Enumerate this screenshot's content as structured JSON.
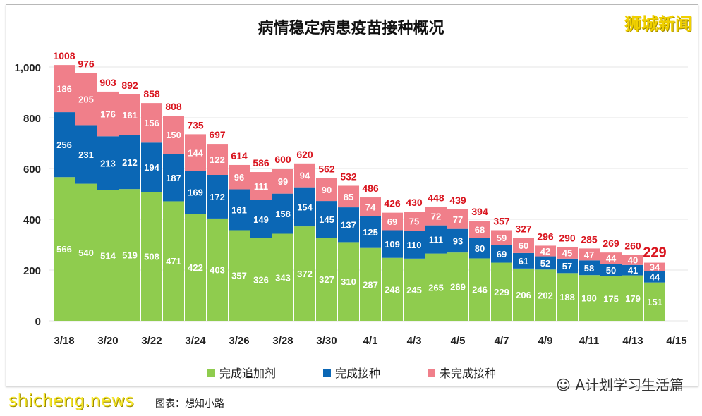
{
  "chart_data": {
    "type": "bar",
    "stacked": true,
    "title": "病情稳定病患疫苗接种概况",
    "categories": [
      "3/18",
      "3/19",
      "3/20",
      "3/21",
      "3/22",
      "3/23",
      "3/24",
      "3/25",
      "3/26",
      "3/27",
      "3/28",
      "3/29",
      "3/30",
      "3/31",
      "4/1",
      "4/2",
      "4/3",
      "4/4",
      "4/5",
      "4/6",
      "4/7",
      "4/8",
      "4/9",
      "4/10",
      "4/11",
      "4/12",
      "4/13",
      "4/14"
    ],
    "xtick_labels": [
      "3/18",
      "3/20",
      "3/22",
      "3/24",
      "3/26",
      "3/28",
      "3/30",
      "4/1",
      "4/3",
      "4/5",
      "4/7",
      "4/9",
      "4/11",
      "4/13",
      "4/15"
    ],
    "ytick_labels": [
      "0",
      "200",
      "400",
      "600",
      "800",
      "1,000"
    ],
    "ylim": [
      0,
      1000
    ],
    "grid": true,
    "legend_position": "bottom",
    "series": [
      {
        "name": "完成追加剂",
        "color": "#8fcc4e",
        "values": [
          566,
          540,
          514,
          519,
          508,
          471,
          422,
          403,
          357,
          326,
          343,
          372,
          327,
          310,
          287,
          248,
          245,
          265,
          269,
          246,
          229,
          206,
          202,
          188,
          180,
          175,
          179,
          151
        ]
      },
      {
        "name": "完成接种",
        "color": "#0b67b5",
        "values": [
          256,
          231,
          213,
          212,
          194,
          187,
          169,
          172,
          161,
          149,
          158,
          154,
          145,
          137,
          125,
          109,
          110,
          111,
          93,
          80,
          69,
          61,
          52,
          57,
          58,
          50,
          41,
          44
        ]
      },
      {
        "name": "未完成接种",
        "color": "#f07f8a",
        "values": [
          186,
          205,
          176,
          161,
          156,
          150,
          144,
          122,
          96,
          111,
          99,
          94,
          90,
          85,
          74,
          69,
          75,
          72,
          77,
          68,
          59,
          60,
          42,
          45,
          47,
          44,
          40,
          34
        ]
      }
    ],
    "totals": [
      1008,
      976,
      903,
      892,
      858,
      808,
      735,
      697,
      614,
      586,
      600,
      620,
      562,
      532,
      486,
      426,
      430,
      448,
      439,
      394,
      357,
      327,
      296,
      290,
      285,
      269,
      260,
      229
    ],
    "total_color": "#d9141e"
  },
  "watermarks": {
    "top_right": "狮城新闻",
    "bottom_left": "shicheng.news",
    "bottom_right": "A计划学习生活篇"
  },
  "caption": "图表：想知小路"
}
